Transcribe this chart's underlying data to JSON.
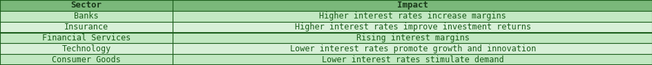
{
  "headers": [
    "Sector",
    "Impact"
  ],
  "rows": [
    [
      "Banks",
      "Higher interest rates increase margins"
    ],
    [
      "Insurance",
      "Higher interest rates improve investment returns"
    ],
    [
      "Financial Services",
      "Rising interest margins"
    ],
    [
      "Technology",
      "Lower interest rates promote growth and innovation"
    ],
    [
      "Consumer Goods",
      "Lower interest rates stimulate demand"
    ]
  ],
  "header_bg": "#7ab87a",
  "row_bg_1": "#c2e8c2",
  "row_bg_2": "#d8f0d8",
  "text_color": "#1a5c1a",
  "border_color": "#1a5c1a",
  "header_text_color": "#1a3a1a",
  "font_size": 8.5,
  "header_font_size": 9.0,
  "col_split": 0.265,
  "fig_width": 9.45,
  "fig_height": 0.95,
  "dpi": 100
}
